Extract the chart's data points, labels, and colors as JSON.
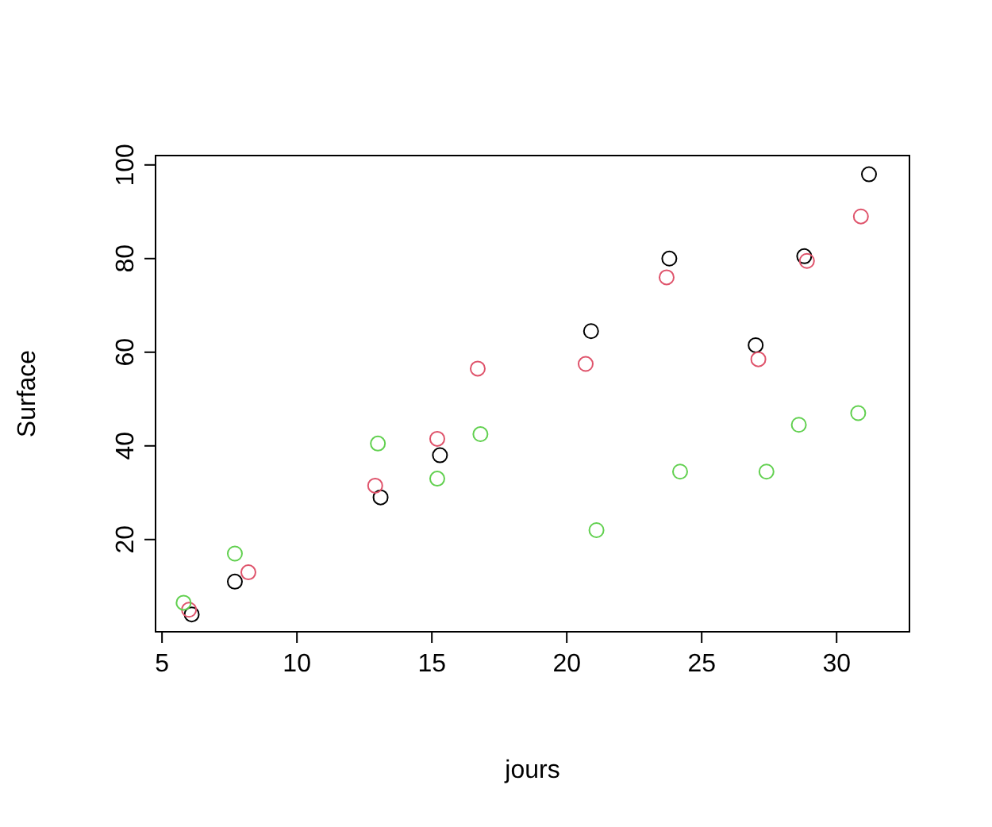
{
  "chart_data": {
    "type": "scatter",
    "xlabel": "jours",
    "ylabel": "Surface",
    "marker": "circle",
    "grid": false,
    "xlim": [
      4.76,
      32.7
    ],
    "ylim": [
      0.3,
      102
    ],
    "xticks": [
      5,
      10,
      15,
      20,
      25,
      30
    ],
    "yticks": [
      20,
      40,
      60,
      80,
      100
    ],
    "series": [
      {
        "color": "#000000",
        "x": [
          6.1,
          7.7,
          13.1,
          15.3,
          20.9,
          23.8,
          27,
          28.8,
          31.2
        ],
        "values": [
          4,
          11,
          29,
          38,
          64.5,
          80,
          61.5,
          80.5,
          98
        ]
      },
      {
        "color": "#df536b",
        "x": [
          6,
          8.2,
          12.9,
          15.2,
          16.7,
          20.7,
          23.7,
          27.1,
          28.9,
          30.9
        ],
        "values": [
          5,
          13,
          31.5,
          41.5,
          56.5,
          57.5,
          76,
          58.5,
          79.5,
          89
        ]
      },
      {
        "color": "#61d04f",
        "x": [
          5.8,
          7.7,
          13,
          15.2,
          16.8,
          21.1,
          24.2,
          27.4,
          28.6,
          30.8
        ],
        "values": [
          6.5,
          17,
          40.5,
          33,
          42.5,
          22,
          34.5,
          34.5,
          44.5,
          47
        ]
      }
    ]
  }
}
